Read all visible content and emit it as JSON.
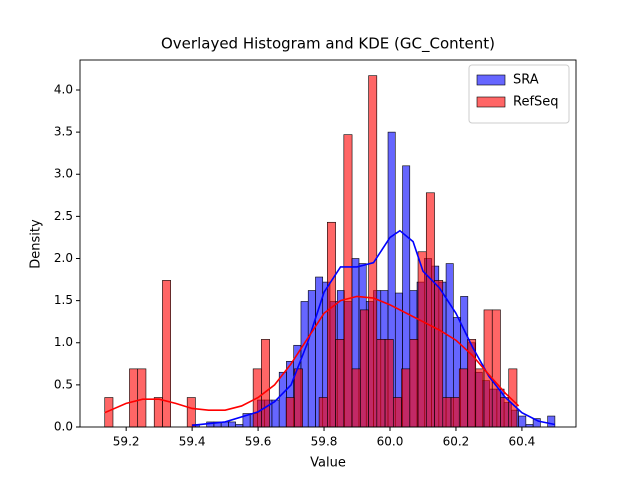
{
  "chart_data": {
    "type": "histogram",
    "title": "Overlayed Histogram and KDE (GC_Content)",
    "xlabel": "Value",
    "ylabel": "Density",
    "xlim": [
      59.06,
      60.564
    ],
    "ylim": [
      0,
      4.356
    ],
    "xticks": [
      59.2,
      59.4,
      59.6,
      59.8,
      {
        "value": 60,
        "label": "60.0"
      },
      60.2,
      60.4
    ],
    "yticks": [
      {
        "value": 0,
        "label": "0.0"
      },
      0.5,
      {
        "value": 1,
        "label": "1.0"
      },
      1.5,
      {
        "value": 2,
        "label": "2.0"
      },
      2.5,
      {
        "value": 3,
        "label": "3.0"
      },
      3.5,
      {
        "value": 4,
        "label": "4.0"
      }
    ],
    "legend": "upper right",
    "series": [
      {
        "name": "SRA",
        "color": "#0000ff",
        "bins": [
          59.4,
          59.422,
          59.444,
          59.466,
          59.488,
          59.51,
          59.532,
          59.554,
          59.576,
          59.598,
          59.62,
          59.642,
          59.664,
          59.686,
          59.708,
          59.73,
          59.752,
          59.774,
          59.796,
          59.818,
          59.84,
          59.862,
          59.884,
          59.906,
          59.928,
          59.95,
          59.972,
          59.994,
          60.016,
          60.038,
          60.06,
          60.082,
          60.104,
          60.126,
          60.148,
          60.17,
          60.192,
          60.214,
          60.236,
          60.258,
          60.28,
          60.302,
          60.324,
          60.346,
          60.368,
          60.39,
          60.412,
          60.434,
          60.456,
          60.478,
          60.5
        ],
        "values": [
          0.03,
          0,
          0.06,
          0.06,
          0.06,
          0.06,
          0.03,
          0.16,
          0.16,
          0.32,
          0.32,
          0.32,
          0.65,
          0.78,
          0.97,
          1.49,
          1.62,
          1.78,
          1.72,
          1.49,
          1.62,
          1.49,
          2.0,
          1.94,
          1.49,
          1.62,
          1.62,
          3.5,
          1.59,
          3.1,
          1.62,
          1.72,
          2.0,
          1.91,
          1.72,
          1.94,
          1.3,
          1.55,
          1.0,
          0.65,
          0.55,
          0.45,
          0.45,
          0.29,
          0.2,
          0.13,
          0.03,
          0.1,
          0,
          0.13
        ],
        "kde_x": [
          59.4,
          59.5,
          59.6,
          59.65,
          59.7,
          59.75,
          59.8,
          59.85,
          59.9,
          59.95,
          60.0,
          60.03,
          60.07,
          60.1,
          60.15,
          60.2,
          60.25,
          60.3,
          60.35,
          60.4,
          60.45,
          60.5
        ],
        "kde_y": [
          0.02,
          0.06,
          0.18,
          0.3,
          0.5,
          1.0,
          1.6,
          1.9,
          1.9,
          1.95,
          2.25,
          2.33,
          2.2,
          1.85,
          1.65,
          1.35,
          0.95,
          0.6,
          0.35,
          0.17,
          0.07,
          0.03
        ]
      },
      {
        "name": "RefSeq",
        "color": "#ff0000",
        "bins": [
          59.135,
          59.16,
          59.185,
          59.21,
          59.235,
          59.26,
          59.285,
          59.31,
          59.335,
          59.36,
          59.385,
          59.41,
          59.435,
          59.46,
          59.485,
          59.51,
          59.535,
          59.56,
          59.585,
          59.61,
          59.635,
          59.66,
          59.685,
          59.71,
          59.735,
          59.76,
          59.785,
          59.81,
          59.835,
          59.86,
          59.885,
          59.91,
          59.935,
          59.96,
          59.985,
          60.01,
          60.035,
          60.06,
          60.085,
          60.11,
          60.135,
          60.16,
          60.185,
          60.21,
          60.235,
          60.26,
          60.285,
          60.31,
          60.335,
          60.36,
          60.385
        ],
        "values": [
          0.35,
          0,
          0,
          0.69,
          0.69,
          0,
          0.35,
          1.74,
          0,
          0,
          0.35,
          0,
          0,
          0,
          0,
          0,
          0,
          0,
          0.69,
          1.04,
          0,
          0,
          0.35,
          0.69,
          0,
          0,
          0.35,
          2.43,
          1.04,
          3.47,
          0.69,
          1.39,
          4.17,
          1.04,
          1.04,
          0.35,
          0.69,
          1.04,
          2.08,
          2.78,
          1.74,
          0.35,
          0.35,
          0.69,
          1.04,
          0.69,
          1.39,
          1.39,
          0.35,
          0.69
        ],
        "kde_x": [
          59.135,
          59.2,
          59.25,
          59.3,
          59.35,
          59.4,
          59.45,
          59.5,
          59.55,
          59.6,
          59.65,
          59.7,
          59.75,
          59.8,
          59.85,
          59.9,
          59.95,
          60.0,
          60.05,
          60.1,
          60.15,
          60.2,
          60.25,
          60.3,
          60.35,
          60.39
        ],
        "kde_y": [
          0.17,
          0.28,
          0.33,
          0.33,
          0.28,
          0.22,
          0.2,
          0.2,
          0.25,
          0.35,
          0.5,
          0.75,
          1.05,
          1.35,
          1.5,
          1.55,
          1.53,
          1.45,
          1.35,
          1.25,
          1.15,
          1.03,
          0.85,
          0.62,
          0.4,
          0.25
        ]
      }
    ]
  }
}
